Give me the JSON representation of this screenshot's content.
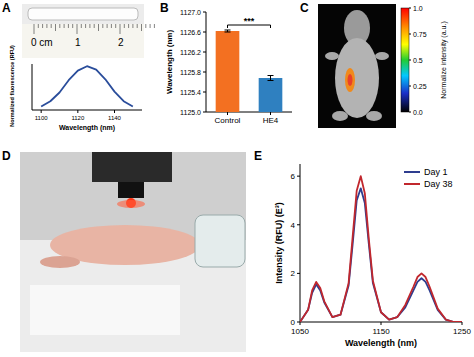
{
  "ruler_labels": [
    "0 cm",
    "1",
    "2"
  ],
  "other_panels": [
    "D"
  ],
  "chart_data": [
    {
      "panel": "A",
      "type": "line",
      "x": [
        1100,
        1105,
        1110,
        1115,
        1120,
        1125,
        1130,
        1135,
        1140,
        1145,
        1150
      ],
      "values": [
        0.08,
        0.2,
        0.4,
        0.68,
        0.9,
        1.0,
        0.92,
        0.7,
        0.42,
        0.2,
        0.08
      ],
      "color": "#2a4d9b",
      "xlabel": "Wavelength (nm)",
      "ylabel": "Normalized fluorescence (RFU)",
      "xlim": [
        1095,
        1155
      ],
      "xticks": [
        1100,
        1120,
        1140
      ],
      "ylim": [
        0,
        1.05
      ],
      "tick_labels": "x"
    },
    {
      "panel": "B",
      "type": "bar",
      "categories": [
        "Control",
        "HE4"
      ],
      "values": [
        1126.62,
        1125.68
      ],
      "errors": [
        0.02,
        0.05
      ],
      "colors": [
        "#f37021",
        "#2f80c0"
      ],
      "ylabel": "Wavelength (nm)",
      "ylim": [
        1125.0,
        1127.0
      ],
      "yticks": [
        {
          "value": 1125,
          "label": "1125.0"
        },
        {
          "value": 1125.4,
          "label": "1125.4"
        },
        {
          "value": 1125.8,
          "label": "1125.8"
        },
        {
          "value": 1126.2,
          "label": "1126.2"
        },
        {
          "value": 1126.6,
          "label": "1126.6"
        },
        {
          "value": 1127,
          "label": "1127.0"
        }
      ],
      "annotation": "***"
    },
    {
      "panel": "C",
      "type": "colorbar",
      "label": "Normalize intensity (a.u.)",
      "colorbar_range": [
        0,
        1
      ],
      "colorbar_ticks": [
        {
          "value": 1,
          "label": "1.0"
        },
        0.75,
        0.5,
        0.25,
        {
          "value": 0,
          "label": "0.0"
        }
      ]
    },
    {
      "panel": "E",
      "type": "line",
      "x": [
        1050,
        1060,
        1065,
        1070,
        1075,
        1080,
        1090,
        1100,
        1110,
        1115,
        1120,
        1125,
        1130,
        1135,
        1140,
        1150,
        1160,
        1170,
        1180,
        1190,
        1195,
        1200,
        1205,
        1210,
        1220,
        1230,
        1240,
        1250
      ],
      "series": [
        {
          "name": "Day 1",
          "color": "#2e3d8f",
          "values": [
            0.0,
            0.5,
            1.2,
            1.55,
            1.3,
            0.8,
            0.2,
            0.3,
            1.5,
            3.2,
            5.0,
            5.5,
            4.9,
            3.2,
            1.6,
            0.4,
            0.1,
            0.2,
            0.6,
            1.3,
            1.65,
            1.8,
            1.65,
            1.3,
            0.5,
            0.1,
            0.0,
            0.0
          ]
        },
        {
          "name": "Day 38",
          "color": "#c1272d",
          "values": [
            0.0,
            0.5,
            1.3,
            1.65,
            1.4,
            0.85,
            0.2,
            0.3,
            1.6,
            3.5,
            5.4,
            6.0,
            5.3,
            3.4,
            1.7,
            0.4,
            0.1,
            0.2,
            0.7,
            1.45,
            1.85,
            2.0,
            1.85,
            1.45,
            0.55,
            0.1,
            0.0,
            0.0
          ]
        }
      ],
      "xlabel": "Wavelength (nm)",
      "ylabel": "Intensity (RFU) (E³)",
      "xlim": [
        1050,
        1250
      ],
      "xticks": [
        1050,
        1150,
        1250
      ],
      "ylim": [
        0,
        6.5
      ],
      "yticks": [
        0,
        2,
        4,
        6
      ],
      "legend": "upper right"
    }
  ]
}
